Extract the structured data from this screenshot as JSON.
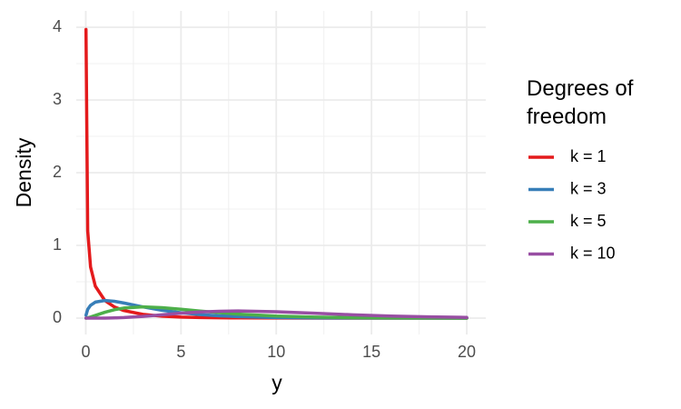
{
  "chart_data": {
    "type": "line",
    "x": [
      0.01,
      0.1,
      0.25,
      0.5,
      1,
      1.5,
      2,
      3,
      4,
      5,
      6,
      7,
      8,
      10,
      12,
      14,
      16,
      18,
      20
    ],
    "series": [
      {
        "name": "k = 1",
        "color": "#e41a1c",
        "values": [
          3.97,
          1.2,
          0.704,
          0.439,
          0.242,
          0.154,
          0.104,
          0.0514,
          0.027,
          0.0146,
          0.0081,
          0.0046,
          0.0026,
          0.00085,
          0.0003,
          0.0001,
          3e-05,
          1e-05,
          0
        ]
      },
      {
        "name": "k = 3",
        "color": "#377eb8",
        "values": [
          0.0397,
          0.12,
          0.176,
          0.22,
          0.242,
          0.231,
          0.208,
          0.154,
          0.108,
          0.0732,
          0.0487,
          0.0319,
          0.0207,
          0.0085,
          0.0034,
          0.0014,
          0.0005,
          0.0002,
          0.0001
        ]
      },
      {
        "name": "k = 5",
        "color": "#4daf4a",
        "values": [
          0.0001,
          0.004,
          0.0147,
          0.0366,
          0.0807,
          0.1154,
          0.1384,
          0.1542,
          0.144,
          0.122,
          0.0973,
          0.0744,
          0.0551,
          0.0283,
          0.0137,
          0.0064,
          0.0029,
          0.0012,
          0.0005
        ]
      },
      {
        "name": "k = 10",
        "color": "#984ea3",
        "values": [
          0,
          0,
          0,
          6e-05,
          0.0008,
          0.0031,
          0.0077,
          0.0235,
          0.0451,
          0.0668,
          0.084,
          0.0944,
          0.0977,
          0.0877,
          0.067,
          0.0456,
          0.0286,
          0.0168,
          0.0095
        ]
      }
    ],
    "x_label": "y",
    "y_label": "Density",
    "legend_title": "Degrees of freedom",
    "xlim": [
      -0.5,
      21
    ],
    "ylim": [
      -0.225,
      4.225
    ],
    "xticks": [
      0,
      5,
      10,
      15,
      20
    ],
    "yticks": [
      0,
      1,
      2,
      3,
      4
    ],
    "grid": true,
    "legend": "right"
  }
}
